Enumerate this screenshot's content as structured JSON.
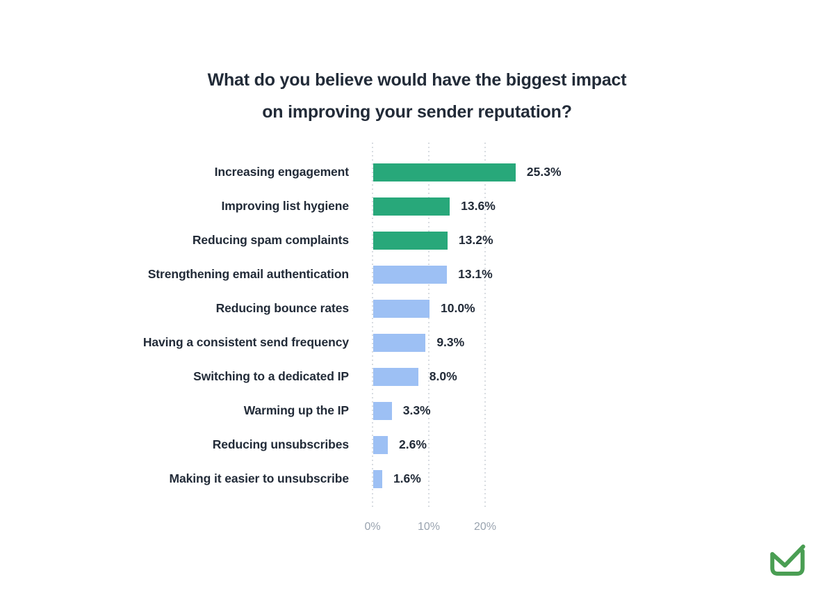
{
  "page": {
    "background": "#FFFFFF"
  },
  "title": {
    "line1": "What do you believe would have the biggest impact",
    "line2": "on improving your sender reputation?"
  },
  "chart_data": {
    "type": "bar",
    "orientation": "horizontal",
    "title": "What do you believe would have the biggest impact on improving your sender reputation?",
    "categories": [
      "Increasing engagement",
      "Improving list hygiene",
      "Reducing spam complaints",
      "Strengthening email authentication",
      "Reducing bounce rates",
      "Having a consistent send frequency",
      "Switching to a dedicated IP",
      "Warming up the IP",
      "Reducing unsubscribes",
      "Making it easier to unsubscribe"
    ],
    "values": [
      25.3,
      13.6,
      13.2,
      13.1,
      10.0,
      9.3,
      8.0,
      3.3,
      2.6,
      1.6
    ],
    "value_labels": [
      "25.3%",
      "13.6%",
      "13.2%",
      "13.1%",
      "10.0%",
      "9.3%",
      "8.0%",
      "3.3%",
      "2.6%",
      "1.6%"
    ],
    "bar_colors": [
      "#28A87A",
      "#28A87A",
      "#28A87A",
      "#9DC0F4",
      "#9DC0F4",
      "#9DC0F4",
      "#9DC0F4",
      "#9DC0F4",
      "#9DC0F4",
      "#9DC0F4"
    ],
    "colors": {
      "highlight": "#28A87A",
      "default": "#9DC0F4"
    },
    "xlabel": "",
    "ylabel": "",
    "x_ticks": [
      "0%",
      "10%",
      "20%"
    ],
    "x_tick_values": [
      0,
      10,
      20
    ],
    "xlim": [
      0,
      26
    ],
    "grid": "dotted-vertical",
    "legend": "none"
  },
  "footer": {
    "logo_name": "envelope-check-logo",
    "logo_color": "#4A9E53"
  }
}
